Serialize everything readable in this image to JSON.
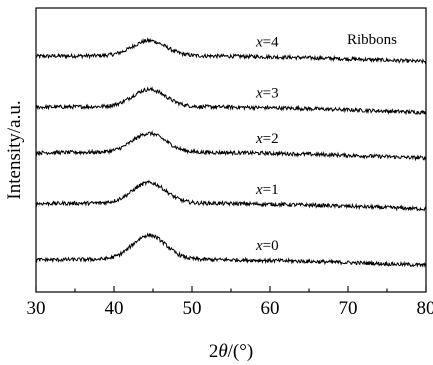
{
  "chart_data": {
    "type": "line",
    "title": "",
    "xlabel": {
      "prefix": "2",
      "var": "θ",
      "suffix": "/(°)"
    },
    "ylabel": "Intensity/a.u.",
    "xlim": [
      30,
      80
    ],
    "xticks": [
      30,
      40,
      50,
      60,
      70,
      80
    ],
    "yticks_shown": false,
    "grid": false,
    "annotation": "Ribbons",
    "series": [
      {
        "name": "x=4",
        "label_var": "x",
        "label_value": "=4",
        "baseline": 4.0,
        "peak_x": 44.5,
        "peak_height": 0.28
      },
      {
        "name": "x=3",
        "label_var": "x",
        "label_value": "=3",
        "baseline": 3.05,
        "peak_x": 44.5,
        "peak_height": 0.32
      },
      {
        "name": "x=2",
        "label_var": "x",
        "label_value": "=2",
        "baseline": 2.2,
        "peak_x": 44.5,
        "peak_height": 0.35
      },
      {
        "name": "x=1",
        "label_var": "x",
        "label_value": "=1",
        "baseline": 1.25,
        "peak_x": 44.5,
        "peak_height": 0.38
      },
      {
        "name": "x=0",
        "label_var": "x",
        "label_value": "=0",
        "baseline": 0.2,
        "peak_x": 44.5,
        "peak_height": 0.45
      }
    ]
  }
}
